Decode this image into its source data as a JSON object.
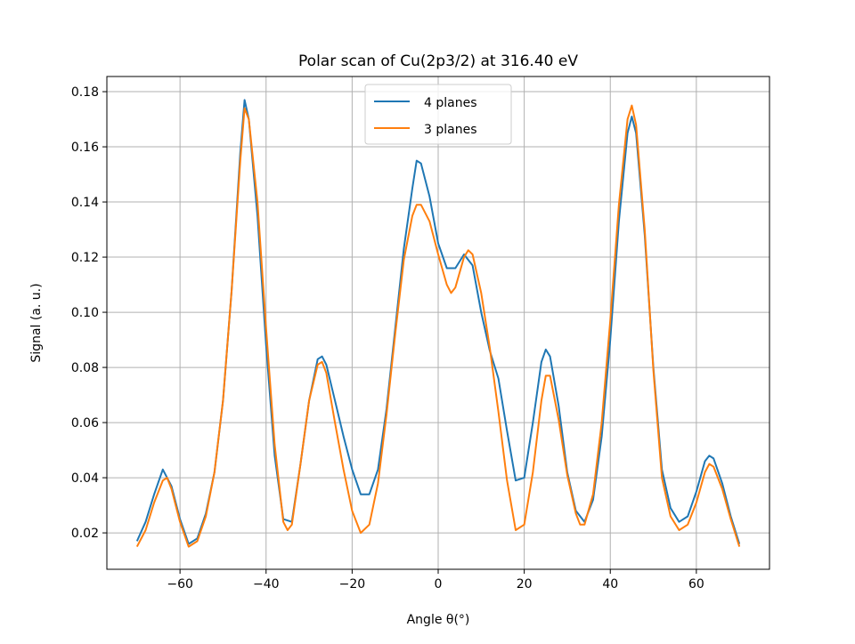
{
  "chart_data": {
    "type": "line",
    "title": "Polar scan of Cu(2p3/2) at 316.40 eV",
    "xlabel": "Angle θ(°)",
    "ylabel": "Signal (a. u.)",
    "xlim": [
      -77,
      77
    ],
    "ylim": [
      0.0068,
      0.1855
    ],
    "xticks": [
      -60,
      -40,
      -20,
      0,
      20,
      40,
      60
    ],
    "xtick_labels": [
      "−60",
      "−40",
      "−20",
      "0",
      "20",
      "40",
      "60"
    ],
    "yticks": [
      0.02,
      0.04,
      0.06,
      0.08,
      0.1,
      0.12,
      0.14,
      0.16,
      0.18
    ],
    "ytick_labels": [
      "0.02",
      "0.04",
      "0.06",
      "0.08",
      "0.10",
      "0.12",
      "0.14",
      "0.16",
      "0.18"
    ],
    "grid": true,
    "legend_position": "top-center",
    "series": [
      {
        "name": "4 planes",
        "color": "#1f77b4",
        "x": [
          -70,
          -68,
          -66,
          -64,
          -62,
          -60,
          -58,
          -56,
          -54,
          -52,
          -50,
          -48,
          -46,
          -45,
          -44,
          -42,
          -40,
          -38,
          -36,
          -34,
          -32,
          -30,
          -28,
          -27,
          -26,
          -24,
          -22,
          -20,
          -18,
          -16,
          -14,
          -12,
          -10,
          -8,
          -6,
          -5,
          -4,
          -2,
          0,
          2,
          4,
          6,
          8,
          10,
          12,
          14,
          16,
          18,
          20,
          22,
          24,
          25,
          26,
          28,
          30,
          32,
          34,
          36,
          38,
          40,
          42,
          44,
          45,
          46,
          48,
          50,
          52,
          54,
          56,
          58,
          60,
          62,
          63,
          64,
          66,
          68,
          70
        ],
        "y": [
          0.017,
          0.024,
          0.034,
          0.043,
          0.037,
          0.025,
          0.016,
          0.018,
          0.027,
          0.042,
          0.068,
          0.108,
          0.158,
          0.177,
          0.17,
          0.135,
          0.088,
          0.048,
          0.025,
          0.024,
          0.045,
          0.068,
          0.083,
          0.084,
          0.081,
          0.068,
          0.055,
          0.043,
          0.034,
          0.034,
          0.043,
          0.065,
          0.094,
          0.123,
          0.145,
          0.155,
          0.154,
          0.142,
          0.125,
          0.116,
          0.116,
          0.121,
          0.117,
          0.1,
          0.086,
          0.076,
          0.057,
          0.039,
          0.04,
          0.06,
          0.082,
          0.0865,
          0.084,
          0.066,
          0.042,
          0.028,
          0.024,
          0.032,
          0.055,
          0.09,
          0.133,
          0.165,
          0.171,
          0.165,
          0.128,
          0.08,
          0.043,
          0.029,
          0.024,
          0.026,
          0.035,
          0.046,
          0.048,
          0.047,
          0.038,
          0.026,
          0.016
        ]
      },
      {
        "name": "3 planes",
        "color": "#ff7f0e",
        "x": [
          -70,
          -68,
          -66,
          -64,
          -63,
          -62,
          -60,
          -58,
          -56,
          -54,
          -52,
          -50,
          -48,
          -46,
          -45,
          -44,
          -42,
          -40,
          -38,
          -36,
          -35,
          -34,
          -32,
          -30,
          -28,
          -27,
          -26,
          -24,
          -22,
          -20,
          -18,
          -16,
          -14,
          -12,
          -10,
          -8,
          -6,
          -5,
          -4,
          -2,
          0,
          2,
          3,
          4,
          6,
          7,
          8,
          10,
          12,
          14,
          16,
          18,
          20,
          22,
          24,
          25,
          26,
          28,
          30,
          32,
          33,
          34,
          36,
          38,
          40,
          42,
          44,
          45,
          46,
          48,
          50,
          52,
          54,
          56,
          58,
          60,
          62,
          63,
          64,
          66,
          68,
          70
        ],
        "y": [
          0.015,
          0.021,
          0.031,
          0.039,
          0.04,
          0.036,
          0.024,
          0.015,
          0.017,
          0.026,
          0.042,
          0.068,
          0.108,
          0.155,
          0.174,
          0.17,
          0.14,
          0.094,
          0.052,
          0.024,
          0.021,
          0.023,
          0.045,
          0.068,
          0.081,
          0.082,
          0.078,
          0.06,
          0.043,
          0.028,
          0.02,
          0.023,
          0.038,
          0.063,
          0.092,
          0.119,
          0.135,
          0.139,
          0.139,
          0.133,
          0.121,
          0.11,
          0.107,
          0.109,
          0.12,
          0.1225,
          0.121,
          0.107,
          0.087,
          0.064,
          0.039,
          0.021,
          0.023,
          0.042,
          0.068,
          0.077,
          0.077,
          0.061,
          0.041,
          0.027,
          0.023,
          0.023,
          0.034,
          0.06,
          0.097,
          0.139,
          0.17,
          0.175,
          0.168,
          0.13,
          0.079,
          0.04,
          0.026,
          0.021,
          0.023,
          0.031,
          0.042,
          0.045,
          0.044,
          0.036,
          0.025,
          0.015
        ]
      }
    ]
  }
}
